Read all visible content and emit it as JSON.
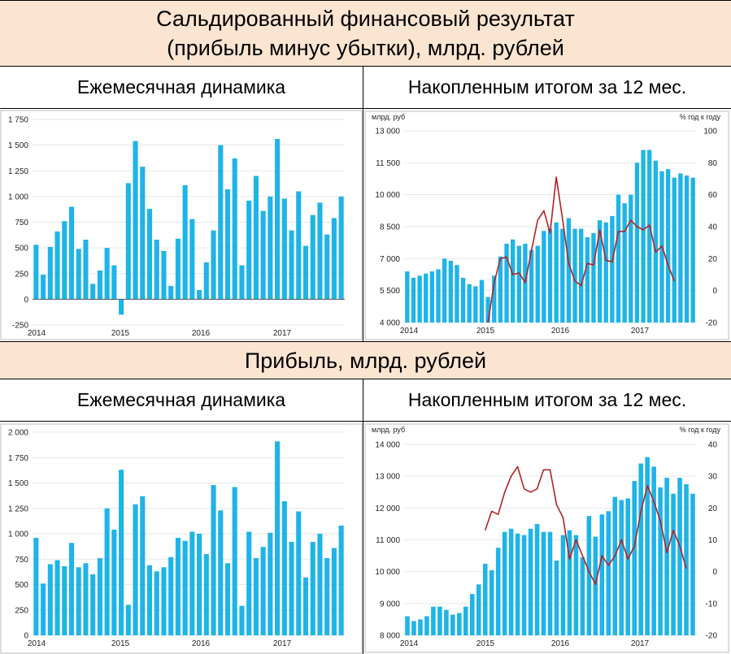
{
  "headers": {
    "top_line1": "Сальдированный финансовый результат",
    "top_line2": "(прибыль минус убытки), млрд. рублей",
    "mid": "Прибыль, млрд. рублей",
    "monthly": "Ежемесячная динамика",
    "cumulative": "Накопленным итогом за 12 мес."
  },
  "colors": {
    "bar": "#1eb4e8",
    "line": "#b22222",
    "band": "#fbe5d1"
  },
  "chart_data": [
    {
      "id": "p1",
      "type": "bar",
      "x_labels": [
        "2014",
        "2015",
        "2016",
        "2017"
      ],
      "ylim": [
        -250,
        1750
      ],
      "y_ticks": [
        -250,
        0,
        250,
        500,
        750,
        1000,
        1250,
        1500,
        1750
      ],
      "y_tick_labels": [
        "-250",
        "0",
        "250",
        "500",
        "750",
        "1 000",
        "1 250",
        "1 500",
        "1 750"
      ],
      "values": [
        530,
        240,
        510,
        660,
        760,
        900,
        490,
        580,
        150,
        280,
        500,
        330,
        -150,
        1130,
        1540,
        1290,
        880,
        580,
        470,
        130,
        590,
        1110,
        780,
        90,
        360,
        670,
        1500,
        1070,
        1370,
        330,
        960,
        1200,
        860,
        1000,
        1560,
        980,
        670,
        1050,
        520,
        820,
        940,
        630,
        790,
        1000
      ]
    },
    {
      "id": "p2",
      "type": "bar+line",
      "left_unit": "млрд. руб",
      "right_unit": "% год к году",
      "x_labels": [
        "2014",
        "2015",
        "2016",
        "2017"
      ],
      "ylim": [
        4000,
        13000
      ],
      "y_ticks": [
        4000,
        5500,
        7000,
        8500,
        10000,
        11500,
        13000
      ],
      "y_tick_labels": [
        "4 000",
        "5 500",
        "7 000",
        "8 500",
        "10 000",
        "11 500",
        "13 000"
      ],
      "y2lim": [
        -20,
        100
      ],
      "y2_ticks": [
        -20,
        0,
        20,
        40,
        60,
        80,
        100
      ],
      "y2_tick_labels": [
        "-20",
        "0",
        "20",
        "40",
        "60",
        "80",
        "100"
      ],
      "values": [
        6400,
        6100,
        6200,
        6300,
        6400,
        6500,
        7000,
        6900,
        6700,
        6100,
        5800,
        5700,
        6000,
        5200,
        6200,
        7100,
        7700,
        7900,
        7600,
        7700,
        7400,
        7600,
        8300,
        8400,
        8700,
        8400,
        8900,
        8400,
        8400,
        8000,
        8200,
        8800,
        8700,
        9000,
        10000,
        9600,
        10000,
        11500,
        12100,
        12100,
        11600,
        11100,
        11200,
        10800,
        11000,
        10900,
        10800
      ],
      "line_start_index": 13,
      "line": [
        -20,
        5,
        20,
        21,
        10,
        11,
        5,
        25,
        44,
        50,
        36,
        71,
        45,
        17,
        6,
        3,
        17,
        16,
        38,
        19,
        18,
        37,
        37,
        44,
        40,
        38,
        41,
        24,
        28,
        16,
        6
      ]
    },
    {
      "id": "p3",
      "type": "bar",
      "x_labels": [
        "2014",
        "2015",
        "2016",
        "2017"
      ],
      "ylim": [
        0,
        2000
      ],
      "y_ticks": [
        0,
        250,
        500,
        750,
        1000,
        1250,
        1500,
        1750,
        2000
      ],
      "y_tick_labels": [
        "0",
        "250",
        "500",
        "750",
        "1 000",
        "1 250",
        "1 500",
        "1 750",
        "2 000"
      ],
      "values": [
        960,
        510,
        700,
        740,
        680,
        910,
        670,
        710,
        600,
        760,
        1250,
        1040,
        1630,
        300,
        1290,
        1370,
        690,
        630,
        670,
        770,
        960,
        930,
        1020,
        1000,
        800,
        1480,
        1230,
        710,
        1460,
        290,
        1020,
        760,
        870,
        1010,
        1910,
        1320,
        920,
        1220,
        570,
        920,
        1000,
        760,
        860,
        1080
      ]
    },
    {
      "id": "p4",
      "type": "bar+line",
      "left_unit": "млрд. руб",
      "right_unit": "% год к году",
      "x_labels": [
        "2014",
        "2015",
        "2016",
        "2017"
      ],
      "ylim": [
        8000,
        14000
      ],
      "y_ticks": [
        8000,
        9000,
        10000,
        11000,
        12000,
        13000,
        14000
      ],
      "y_tick_labels": [
        "8 000",
        "9 000",
        "10 000",
        "11 000",
        "12 000",
        "13 000",
        "14 000"
      ],
      "y2lim": [
        -20,
        40
      ],
      "y2_ticks": [
        -20,
        -10,
        0,
        10,
        20,
        30,
        40
      ],
      "y2_tick_labels": [
        "-20",
        "-10",
        "0",
        "10",
        "20",
        "30",
        "40"
      ],
      "values": [
        8600,
        8450,
        8500,
        8600,
        8900,
        8900,
        8800,
        8650,
        8700,
        8900,
        9300,
        9600,
        10250,
        10050,
        10750,
        11250,
        11350,
        11200,
        11150,
        11350,
        11500,
        11250,
        11250,
        10350,
        11150,
        11300,
        11150,
        10450,
        11750,
        11100,
        11800,
        11900,
        12350,
        12250,
        12300,
        12850,
        13400,
        13600,
        13300,
        12650,
        12950,
        12450,
        12950,
        12750,
        12450
      ],
      "line_start_index": 12,
      "line": [
        13,
        19,
        18,
        25,
        30,
        33,
        26,
        25,
        26,
        32,
        32,
        21,
        17,
        4,
        10,
        5,
        0,
        -4,
        5,
        2,
        5,
        10,
        4,
        8,
        19,
        27,
        22,
        16,
        6,
        13,
        8,
        1
      ]
    }
  ]
}
